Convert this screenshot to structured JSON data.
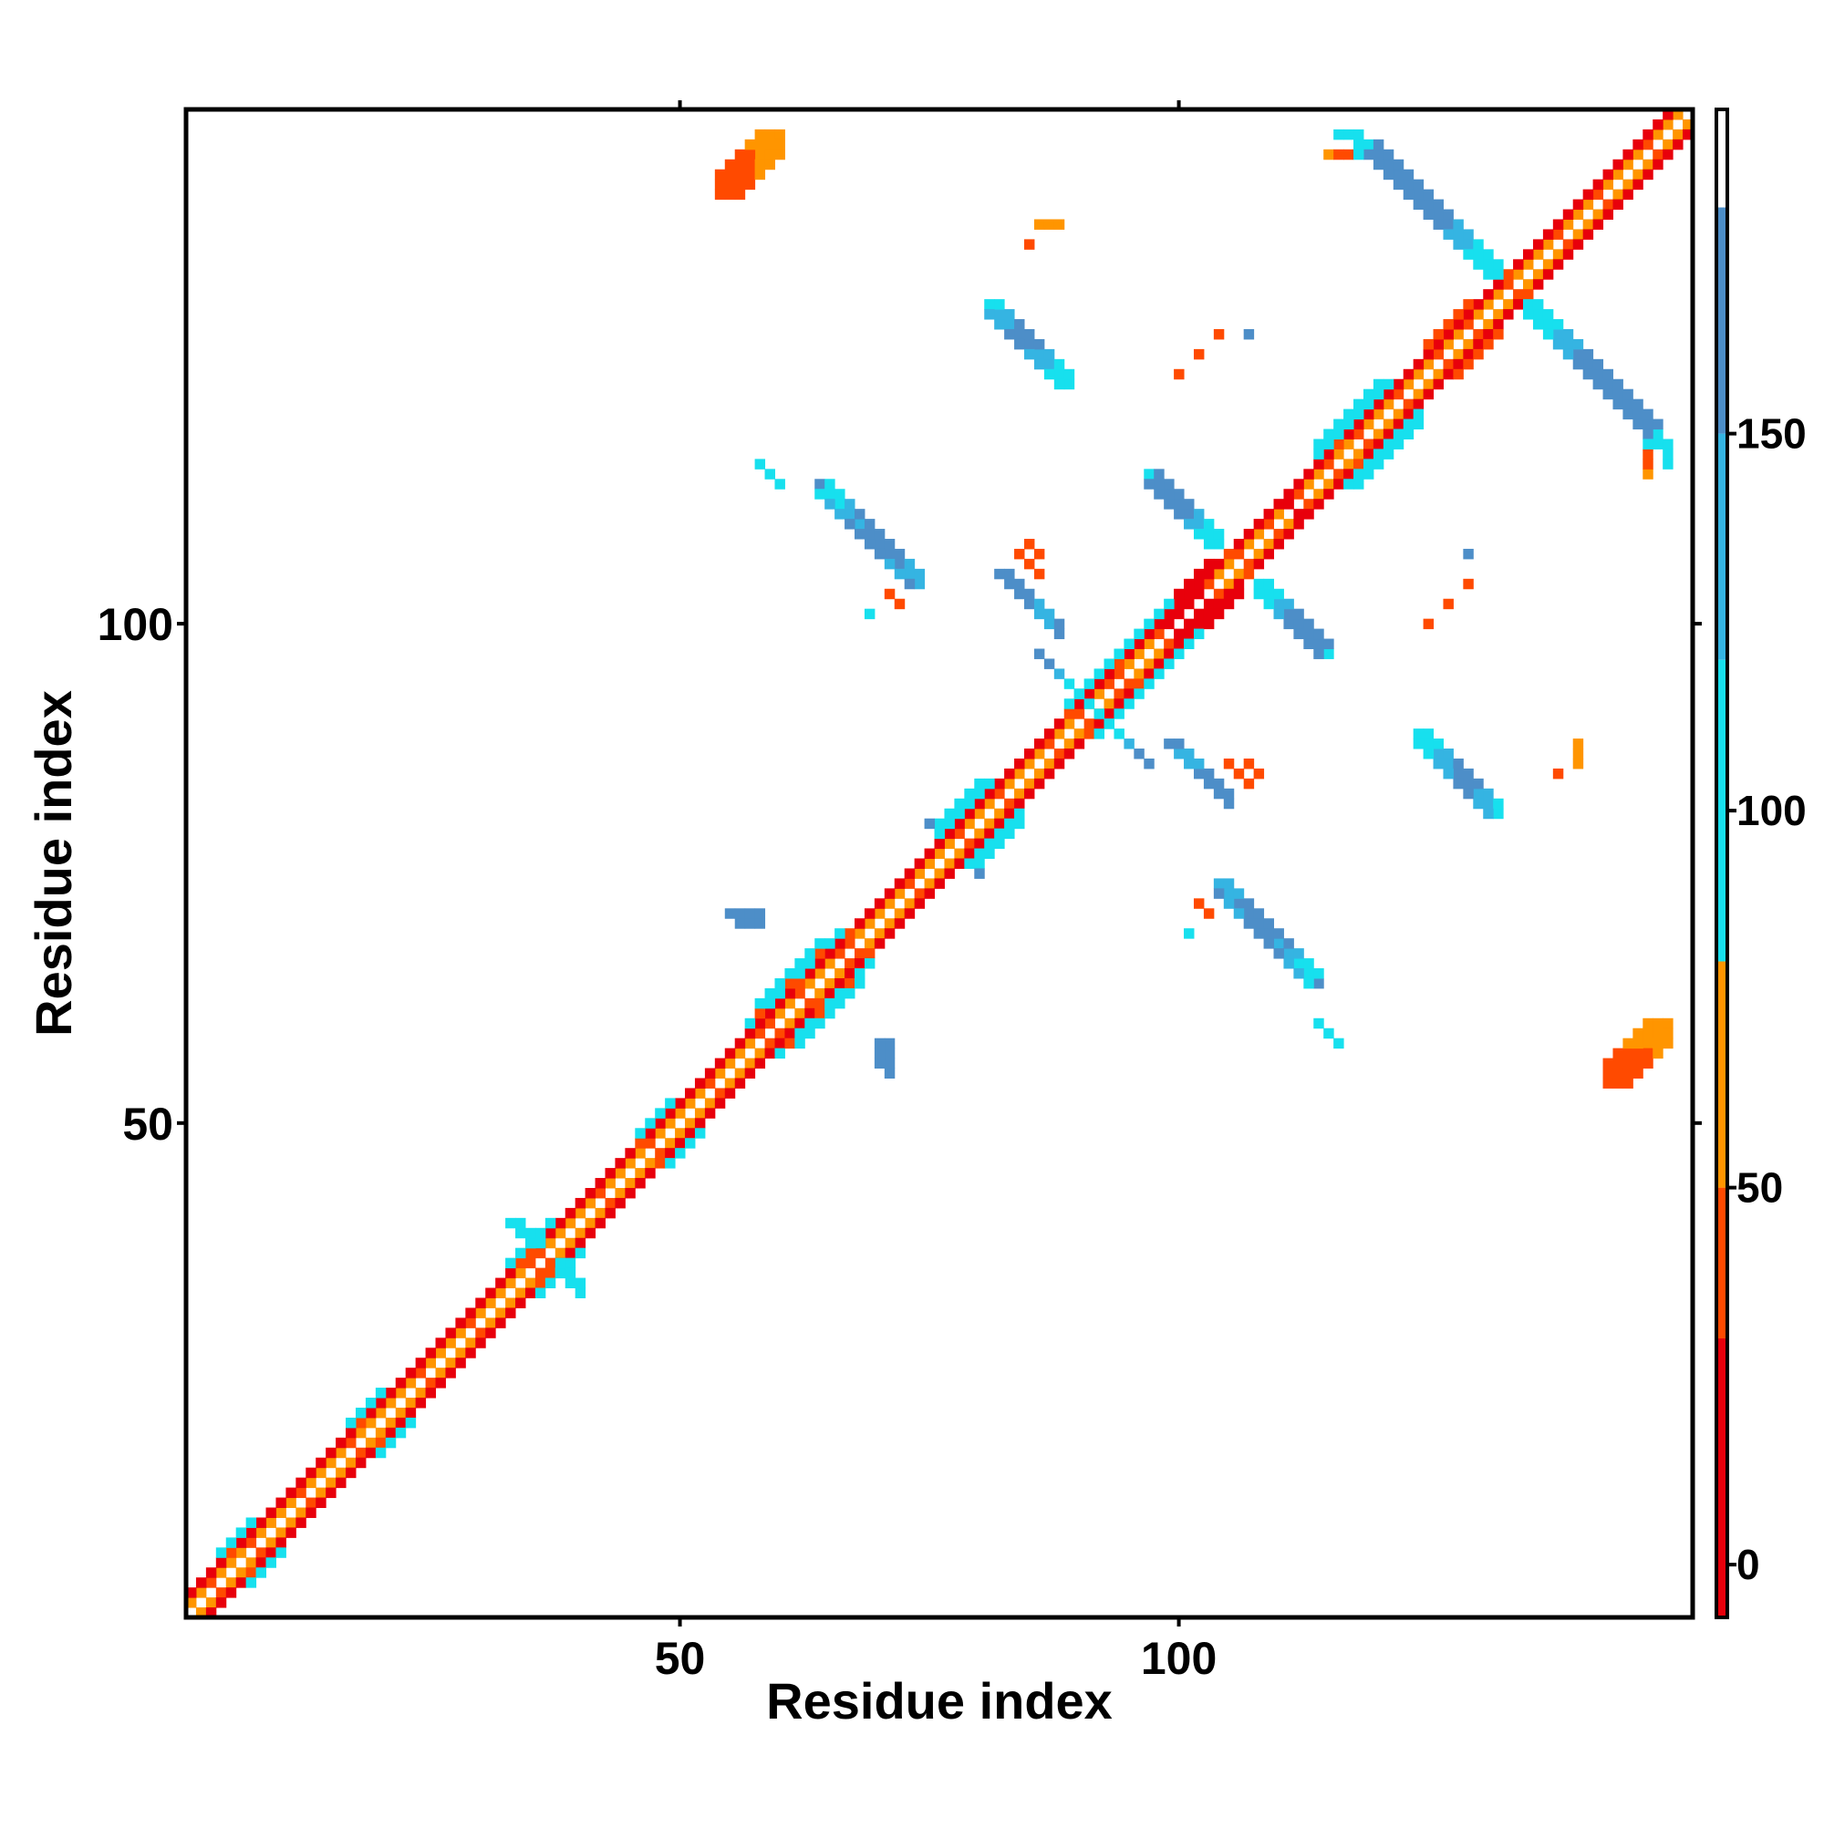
{
  "chart_data": {
    "type": "heatmap",
    "x_label": "Residue index",
    "y_label": "Residue index",
    "xlim": [
      0.5,
      151.5
    ],
    "ylim": [
      0.5,
      151.5
    ],
    "xticks": [
      50,
      100
    ],
    "yticks": [
      50,
      100
    ],
    "symmetric": true,
    "colorbar": {
      "bins": [
        -7,
        30,
        50,
        80,
        120,
        150,
        180,
        193
      ],
      "colors": [
        "#e8000b",
        "#ff4a00",
        "#ff9500",
        "#17e0ee",
        "#35b4e2",
        "#4d8ec8",
        "#ffffff"
      ],
      "ticks": [
        0,
        50,
        100,
        150
      ]
    },
    "runs": [
      {
        "x": 1,
        "y": 2,
        "step": [
          1,
          1
        ],
        "values": [
          65,
          65,
          40,
          65,
          65,
          65,
          40,
          65,
          65,
          65,
          65,
          40,
          65,
          65,
          65,
          65,
          40,
          65,
          65,
          65,
          65,
          65,
          65,
          40,
          65,
          65,
          65,
          65,
          40,
          65,
          65,
          65,
          65,
          65,
          40,
          40,
          65,
          65,
          65,
          65,
          65,
          40,
          65,
          65,
          65,
          65,
          40,
          65,
          65,
          65,
          65,
          65,
          40,
          65,
          65,
          65,
          65,
          40,
          40,
          65,
          65,
          40,
          65,
          65,
          65,
          40,
          40,
          65,
          65,
          65,
          65,
          65,
          40,
          65,
          65,
          65,
          65,
          40,
          65,
          65,
          65,
          40,
          65,
          65,
          65,
          65,
          40,
          65,
          65,
          40,
          65,
          65,
          40,
          40,
          65,
          65,
          65,
          40,
          15,
          15,
          15,
          15,
          40,
          65,
          65,
          40,
          65,
          65,
          40,
          65,
          15,
          40,
          65,
          65,
          40,
          65,
          65,
          40,
          65,
          65,
          65,
          40,
          65,
          65,
          65,
          40,
          65,
          65,
          40,
          65,
          65,
          65,
          40,
          65,
          65,
          65,
          65,
          40,
          65,
          65,
          65,
          40,
          65,
          65,
          65,
          65,
          40,
          65,
          65,
          65
        ]
      },
      {
        "x": 1,
        "y": 3,
        "step": [
          1,
          1
        ],
        "values": [
          15,
          15,
          15,
          15,
          40,
          15,
          15,
          15,
          15,
          15,
          15,
          15,
          15,
          15,
          15,
          15,
          15,
          40,
          15,
          15,
          15,
          15,
          15,
          15,
          15,
          15,
          15,
          15,
          15,
          15,
          15,
          15,
          15,
          40,
          40,
          15,
          15,
          15,
          15,
          15,
          15,
          15,
          15,
          15,
          15,
          40,
          15,
          15,
          15,
          15,
          15,
          15,
          15,
          15,
          15,
          15,
          15,
          15,
          15,
          15,
          15,
          40,
          15,
          15,
          15,
          15,
          40,
          15,
          15,
          15,
          15,
          15,
          15,
          15,
          15,
          15,
          15,
          15,
          15,
          15,
          15,
          15,
          15,
          15,
          15,
          15,
          15,
          15,
          40,
          15,
          15,
          15,
          15,
          40,
          15,
          15,
          15,
          15,
          15,
          15,
          15,
          15,
          15,
          15,
          40,
          15,
          15,
          15,
          15,
          15,
          15,
          15,
          15,
          15,
          15,
          40,
          15,
          15,
          15,
          15,
          15,
          15,
          15,
          15,
          15,
          15,
          15,
          15,
          15,
          15,
          15,
          15,
          40,
          15,
          15,
          15,
          15,
          15,
          15,
          15,
          15,
          15,
          15,
          15,
          15,
          15,
          15,
          15,
          15
        ]
      },
      {
        "x": 4,
        "y": 7,
        "step": [
          1,
          1
        ],
        "values": [
          100,
          100,
          100,
          100
        ]
      },
      {
        "x": 17,
        "y": 20,
        "step": [
          1,
          1
        ],
        "values": [
          100,
          100,
          100,
          100
        ]
      },
      {
        "x": 33,
        "y": 36,
        "step": [
          1,
          1
        ],
        "values": [
          100,
          100,
          100,
          100,
          100
        ]
      },
      {
        "x": 46,
        "y": 49,
        "step": [
          1,
          1
        ],
        "values": [
          100,
          100,
          100,
          100
        ]
      },
      {
        "x": 57,
        "y": 60,
        "step": [
          1,
          1
        ],
        "values": [
          100,
          40,
          100,
          100,
          40,
          100,
          100,
          40,
          100,
          100
        ]
      },
      {
        "x": 58,
        "y": 62,
        "step": [
          1,
          1
        ],
        "values": [
          100,
          100,
          100,
          100,
          100,
          100,
          100
        ]
      },
      {
        "x": 76,
        "y": 79,
        "step": [
          1,
          1
        ],
        "values": [
          100,
          100,
          100,
          100,
          100,
          100
        ]
      },
      {
        "x": 76,
        "y": 80,
        "step": [
          1,
          1
        ],
        "values": [
          100,
          100,
          100,
          100,
          100
        ]
      },
      {
        "x": 89,
        "y": 92,
        "step": [
          1,
          1
        ],
        "values": [
          100,
          100,
          100,
          100,
          100,
          100,
          100,
          100,
          100,
          100,
          100
        ]
      },
      {
        "x": 100,
        "y": 103,
        "step": [
          1,
          1
        ],
        "values": [
          15,
          15,
          15,
          15
        ]
      },
      {
        "x": 114,
        "y": 117,
        "step": [
          1,
          1
        ],
        "values": [
          100,
          100,
          100,
          100,
          100,
          100,
          100,
          100
        ]
      },
      {
        "x": 114,
        "y": 118,
        "step": [
          1,
          1
        ],
        "values": [
          100,
          100,
          100,
          100,
          100,
          100,
          100
        ]
      },
      {
        "x": 125,
        "y": 128,
        "step": [
          1,
          1
        ],
        "values": [
          40,
          40,
          40,
          40,
          40
        ]
      },
      {
        "x": 33,
        "y": 40,
        "step": [
          1,
          -1
        ],
        "values": [
          100,
          100,
          100
        ]
      },
      {
        "x": 34,
        "y": 40,
        "step": [
          1,
          -1
        ],
        "values": [
          100,
          100,
          100
        ]
      },
      {
        "x": 86,
        "y": 97,
        "step": [
          1,
          -1
        ],
        "values": [
          165,
          165,
          135,
          100,
          100,
          100
        ]
      },
      {
        "x": 97,
        "y": 115,
        "step": [
          1,
          -1
        ],
        "values": [
          100,
          165,
          165,
          165,
          165,
          135,
          100,
          100
        ]
      },
      {
        "x": 98,
        "y": 115,
        "step": [
          1,
          -1
        ],
        "values": [
          165,
          165,
          165,
          165,
          135,
          100,
          100
        ]
      },
      {
        "x": 97,
        "y": 114,
        "step": [
          1,
          -1
        ],
        "values": [
          165,
          165,
          165,
          165,
          135,
          100,
          100
        ]
      },
      {
        "x": 119,
        "y": 148,
        "step": [
          1,
          -1
        ],
        "values": [
          100,
          165,
          165,
          165,
          165,
          165,
          165,
          165,
          165,
          135,
          135,
          100,
          100,
          100
        ]
      },
      {
        "x": 120,
        "y": 148,
        "step": [
          1,
          -1
        ],
        "values": [
          165,
          165,
          165,
          165,
          165,
          165,
          165,
          165,
          135,
          135,
          100,
          100,
          100
        ]
      },
      {
        "x": 119,
        "y": 147,
        "step": [
          1,
          -1
        ],
        "values": [
          165,
          165,
          165,
          165,
          165,
          165,
          165,
          165,
          135,
          135,
          100,
          100,
          100
        ]
      },
      {
        "x": 81,
        "y": 132,
        "step": [
          1,
          -1
        ],
        "values": [
          100,
          135,
          135,
          165,
          165,
          135,
          135,
          100,
          100
        ]
      },
      {
        "x": 82,
        "y": 132,
        "step": [
          1,
          -1
        ],
        "values": [
          100,
          135,
          165,
          165,
          165,
          135,
          100,
          100
        ]
      },
      {
        "x": 81,
        "y": 131,
        "step": [
          1,
          -1
        ],
        "values": [
          135,
          135,
          165,
          165,
          135,
          135,
          100,
          100
        ]
      },
      {
        "x": 64,
        "y": 114,
        "step": [
          1,
          -1
        ],
        "values": [
          165,
          100,
          100,
          135,
          135,
          165,
          165,
          165,
          165,
          135,
          135
        ]
      },
      {
        "x": 65,
        "y": 114,
        "step": [
          1,
          -1
        ],
        "values": [
          100,
          100,
          135,
          165,
          165,
          165,
          165,
          165,
          135,
          135
        ]
      },
      {
        "x": 64,
        "y": 113,
        "step": [
          1,
          -1
        ],
        "values": [
          100,
          135,
          135,
          165,
          165,
          165,
          165,
          135,
          135,
          165
        ]
      },
      {
        "x": 58,
        "y": 116,
        "step": [
          1,
          -1
        ],
        "values": [
          100,
          100,
          100
        ]
      },
      {
        "x": 71,
        "y": 103,
        "step": [
          1,
          -1
        ],
        "values": [
          40,
          40
        ]
      },
      {
        "x": 69,
        "y": 101,
        "step": [
          1,
          -1
        ],
        "values": [
          100
        ]
      },
      {
        "x": 82,
        "y": 105,
        "step": [
          1,
          -1
        ],
        "values": [
          165,
          165,
          165,
          165,
          135,
          135,
          165
        ]
      },
      {
        "x": 83,
        "y": 105,
        "step": [
          1,
          -1
        ],
        "values": [
          165,
          165,
          165,
          135,
          135,
          165
        ]
      },
      {
        "x": 85,
        "y": 108,
        "step": [
          1,
          -1
        ],
        "values": [
          40,
          40
        ]
      },
      {
        "x": 84,
        "y": 107,
        "step": [
          1,
          -1
        ],
        "values": [
          40,
          40,
          40
        ]
      },
      {
        "x": 55,
        "y": 71,
        "step": [
          1,
          0
        ],
        "values": [
          165,
          165,
          165,
          165
        ]
      },
      {
        "x": 56,
        "y": 70,
        "step": [
          1,
          0
        ],
        "values": [
          165,
          165,
          165
        ]
      },
      {
        "x": 54,
        "y": 143,
        "step": [
          1,
          1
        ],
        "values": [
          40,
          40,
          40,
          40,
          65,
          65,
          65
        ]
      },
      {
        "x": 54,
        "y": 144,
        "step": [
          1,
          1
        ],
        "values": [
          40,
          40,
          40,
          40,
          65,
          65
        ]
      },
      {
        "x": 55,
        "y": 143,
        "step": [
          1,
          1
        ],
        "values": [
          40,
          40,
          40,
          65,
          65,
          65
        ]
      },
      {
        "x": 54,
        "y": 145,
        "step": [
          1,
          1
        ],
        "values": [
          40,
          40,
          40,
          65,
          65
        ]
      },
      {
        "x": 56,
        "y": 143,
        "step": [
          1,
          1
        ],
        "values": [
          40,
          40,
          65,
          65,
          65
        ]
      },
      {
        "x": 86,
        "y": 140,
        "step": [
          1,
          0
        ],
        "values": [
          65,
          65,
          65
        ]
      },
      {
        "x": 85,
        "y": 138,
        "step": [
          1,
          0
        ],
        "values": [
          40
        ]
      },
      {
        "x": 100,
        "y": 125,
        "step": [
          1,
          0
        ],
        "values": [
          40
        ]
      },
      {
        "x": 102,
        "y": 127,
        "step": [
          1,
          0
        ],
        "values": [
          40
        ]
      },
      {
        "x": 104,
        "y": 129,
        "step": [
          1,
          0
        ],
        "values": [
          40
        ]
      },
      {
        "x": 107,
        "y": 129,
        "step": [
          1,
          0
        ],
        "values": [
          165
        ]
      },
      {
        "x": 116,
        "y": 149,
        "step": [
          1,
          0
        ],
        "values": [
          100,
          100,
          100
        ]
      },
      {
        "x": 115,
        "y": 147,
        "step": [
          1,
          0
        ],
        "values": [
          65,
          40,
          40
        ]
      },
      {
        "x": 118,
        "y": 147,
        "step": [
          0,
          1
        ],
        "values": [
          100,
          100
        ]
      },
      {
        "x": 75,
        "y": 80,
        "step": [
          1,
          0
        ],
        "values": [
          165
        ]
      }
    ]
  }
}
